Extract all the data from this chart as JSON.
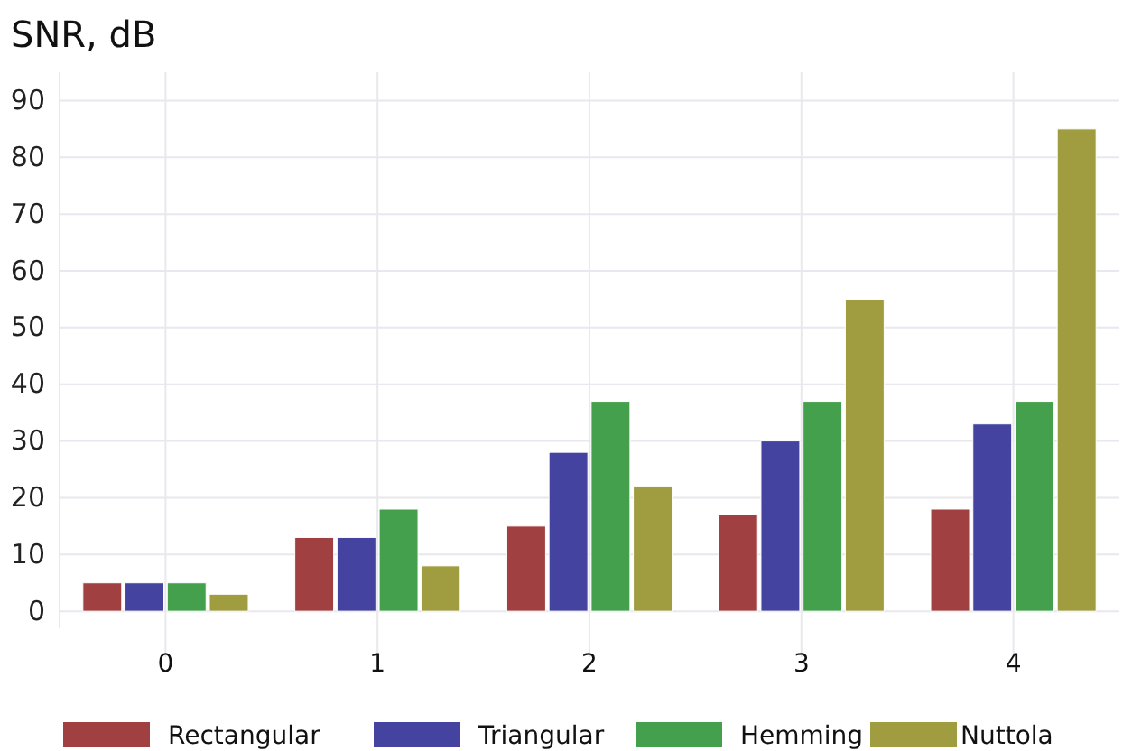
{
  "chart_data": {
    "type": "bar",
    "ylabel": "SNR, dB",
    "categories": [
      "0",
      "1",
      "2",
      "3",
      "4"
    ],
    "series": [
      {
        "name": "Rectangular",
        "color": "#a04040",
        "values": [
          5,
          13,
          15,
          17,
          18
        ]
      },
      {
        "name": "Triangular",
        "color": "#4444a0",
        "values": [
          5,
          13,
          28,
          30,
          33
        ]
      },
      {
        "name": "Hemming",
        "color": "#44a04c",
        "values": [
          5,
          18,
          37,
          37,
          37
        ]
      },
      {
        "name": "Nuttola",
        "color": "#a09c40",
        "values": [
          3,
          8,
          22,
          55,
          85
        ]
      }
    ],
    "ylim": [
      -3,
      95
    ],
    "yticks": [
      0,
      10,
      20,
      30,
      40,
      50,
      60,
      70,
      80,
      90
    ],
    "grid": true,
    "legend": "bottom"
  }
}
